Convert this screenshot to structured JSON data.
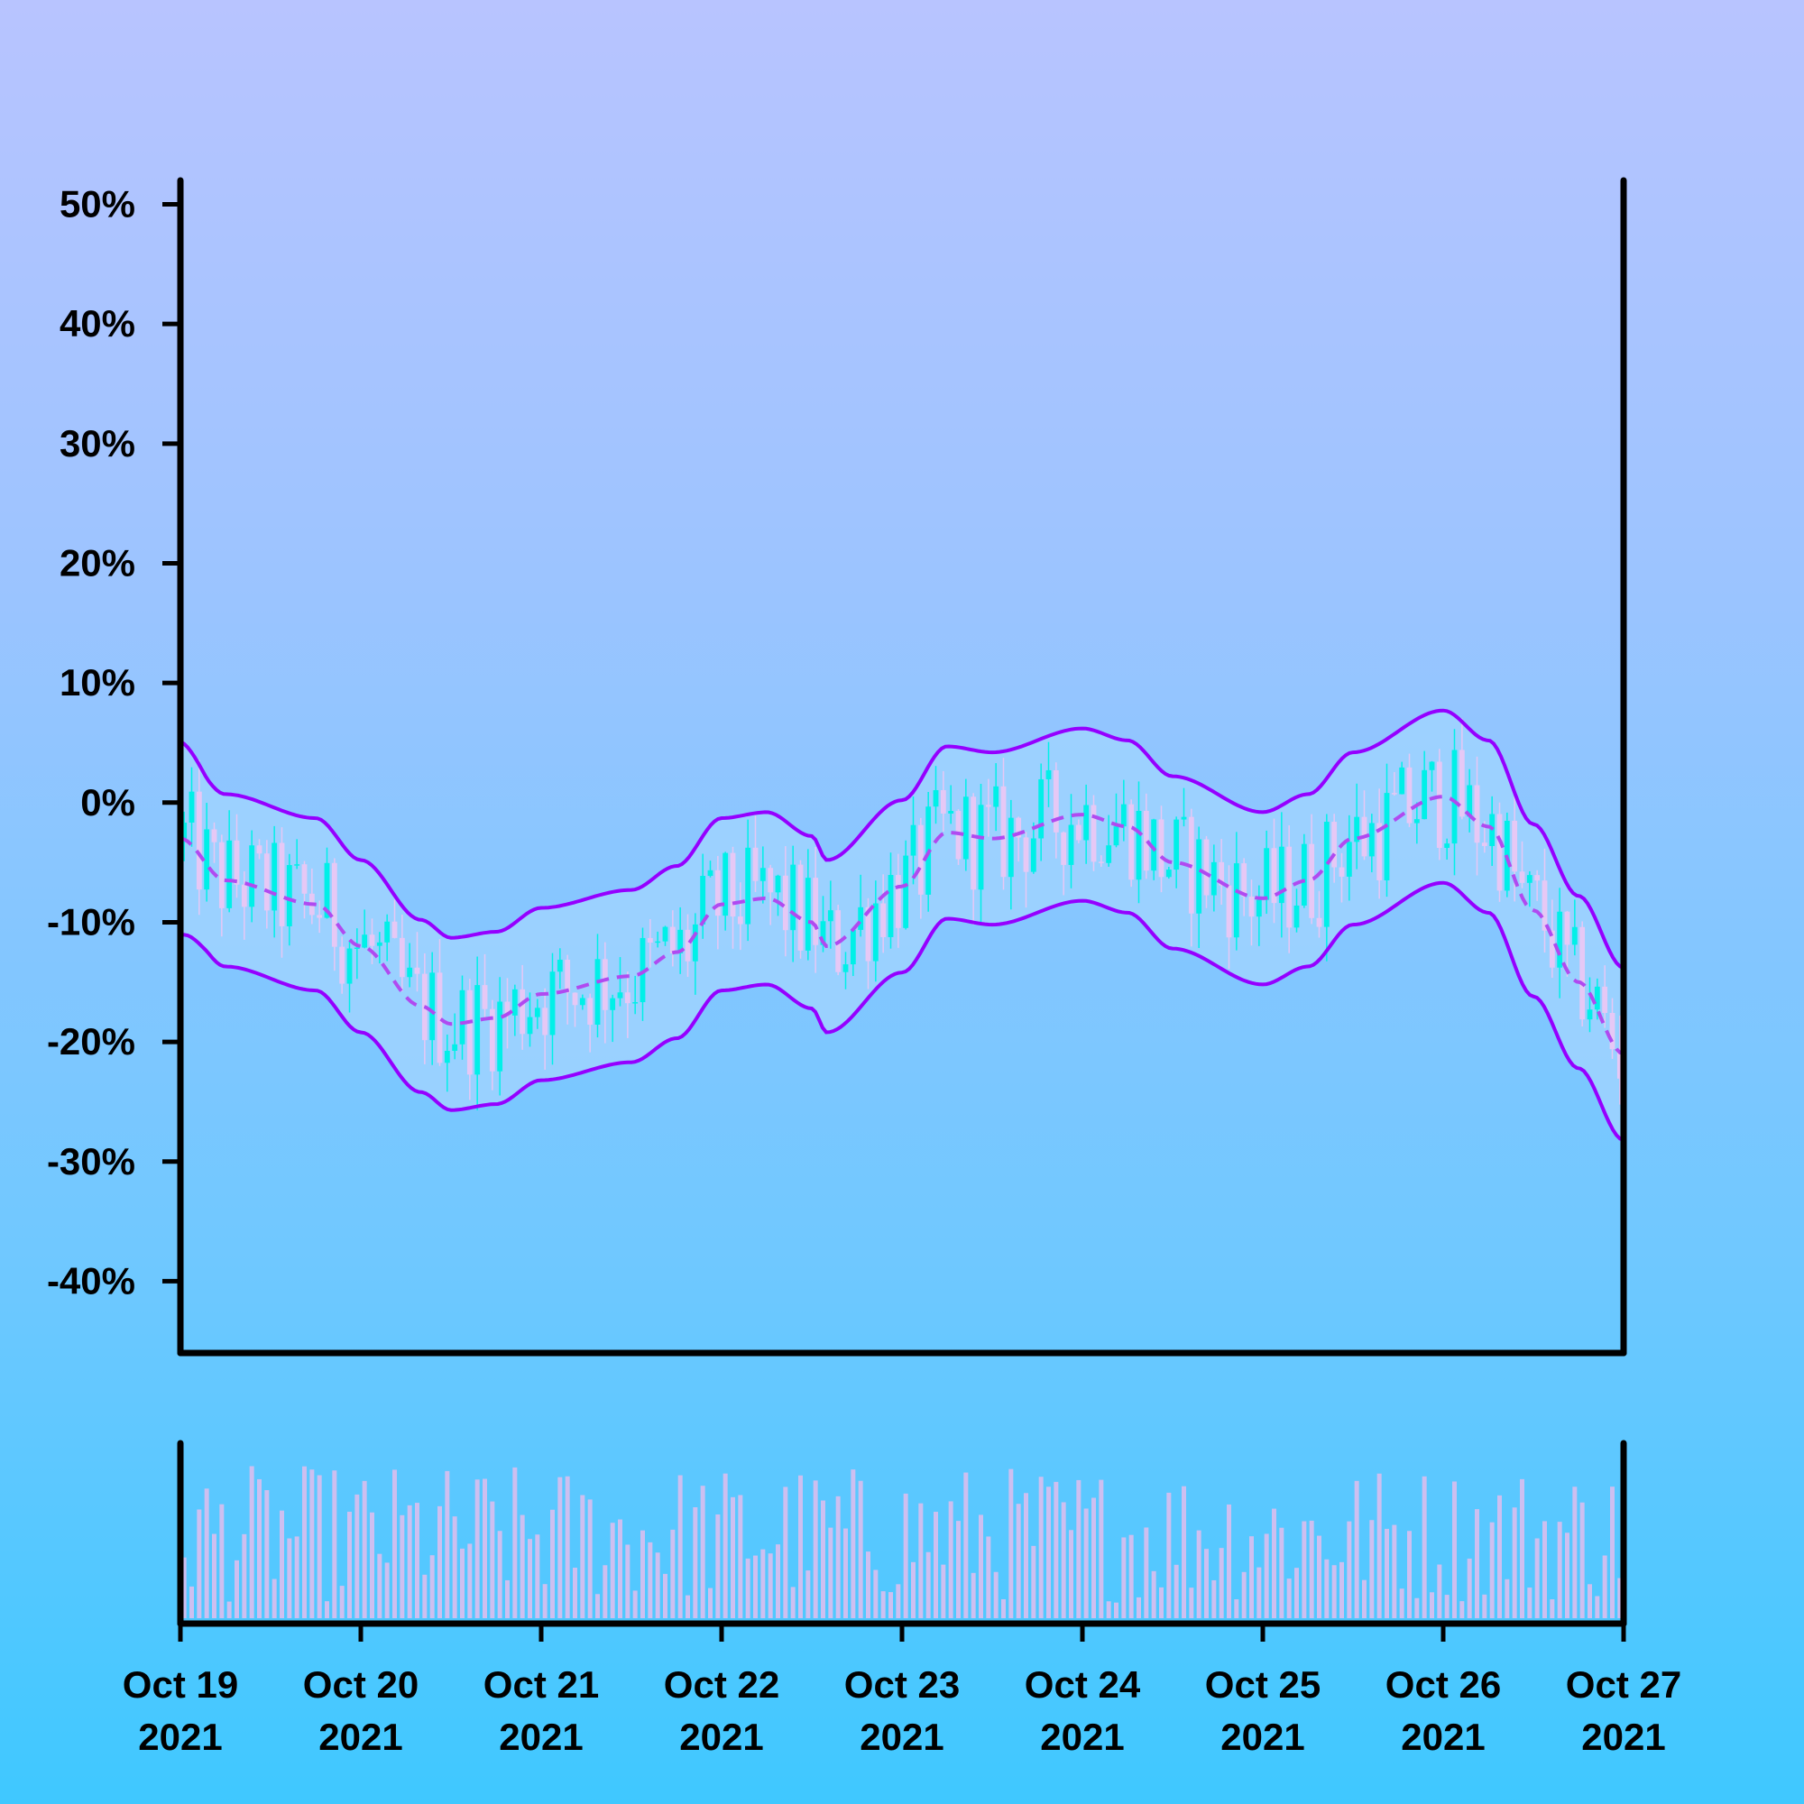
{
  "chart_data": {
    "type": "candlestick",
    "title": "",
    "xlabel": "",
    "ylabel": "",
    "x_range": [
      "Oct 19 2021",
      "Oct 27 2021"
    ],
    "ylim": [
      -46,
      52
    ],
    "y_ticks": [
      "50%",
      "40%",
      "30%",
      "20%",
      "10%",
      "0%",
      "-10%",
      "-20%",
      "-30%",
      "-40%"
    ],
    "y_tick_values": [
      50,
      40,
      30,
      20,
      10,
      0,
      -10,
      -20,
      -30,
      -40
    ],
    "x_ticks": [
      {
        "line1": "Oct 19",
        "line2": "2021"
      },
      {
        "line1": "Oct 20",
        "line2": "2021"
      },
      {
        "line1": "Oct 21",
        "line2": "2021"
      },
      {
        "line1": "Oct 22",
        "line2": "2021"
      },
      {
        "line1": "Oct 23",
        "line2": "2021"
      },
      {
        "line1": "Oct 24",
        "line2": "2021"
      },
      {
        "line1": "Oct 25",
        "line2": "2021"
      },
      {
        "line1": "Oct 26",
        "line2": "2021"
      },
      {
        "line1": "Oct 27",
        "line2": "2021"
      }
    ],
    "band_middle_anchors": [
      [
        "Oct 19 2021 00:00",
        -3
      ],
      [
        "Oct 19 2021 06:00",
        -6.5
      ],
      [
        "Oct 19 2021 18:00",
        -8.5
      ],
      [
        "Oct 20 2021 00:00",
        -12
      ],
      [
        "Oct 20 2021 08:00",
        -17
      ],
      [
        "Oct 20 2021 12:00",
        -18.5
      ],
      [
        "Oct 20 2021 18:00",
        -18
      ],
      [
        "Oct 21 2021 00:00",
        -16
      ],
      [
        "Oct 21 2021 12:00",
        -14.5
      ],
      [
        "Oct 21 2021 18:00",
        -12.5
      ],
      [
        "Oct 22 2021 00:00",
        -8.5
      ],
      [
        "Oct 22 2021 06:00",
        -8
      ],
      [
        "Oct 22 2021 12:00",
        -10
      ],
      [
        "Oct 22 2021 14:00",
        -12
      ],
      [
        "Oct 23 2021 00:00",
        -7
      ],
      [
        "Oct 23 2021 06:00",
        -2.5
      ],
      [
        "Oct 23 2021 12:00",
        -3
      ],
      [
        "Oct 24 2021 00:00",
        -1
      ],
      [
        "Oct 24 2021 06:00",
        -2
      ],
      [
        "Oct 24 2021 12:00",
        -5
      ],
      [
        "Oct 25 2021 00:00",
        -8
      ],
      [
        "Oct 25 2021 06:00",
        -6.5
      ],
      [
        "Oct 25 2021 12:00",
        -3
      ],
      [
        "Oct 26 2021 00:00",
        0.5
      ],
      [
        "Oct 26 2021 06:00",
        -2
      ],
      [
        "Oct 26 2021 12:00",
        -9
      ],
      [
        "Oct 26 2021 18:00",
        -15
      ],
      [
        "Oct 27 2021 00:00",
        -21
      ]
    ],
    "band_width": 7.2,
    "series": [
      {
        "kind": "candles",
        "up_color": "#00f0e8",
        "down_color": "#e6c8f5"
      },
      {
        "kind": "band-middle",
        "color": "#b04af0",
        "style": "dashed"
      },
      {
        "kind": "band-upper",
        "color": "#9500ff"
      },
      {
        "kind": "band-lower",
        "color": "#9500ff"
      },
      {
        "kind": "volume",
        "color": "#cdbff0"
      }
    ],
    "band_fill": "#9fd2ff",
    "grid": false,
    "legend": "none"
  }
}
